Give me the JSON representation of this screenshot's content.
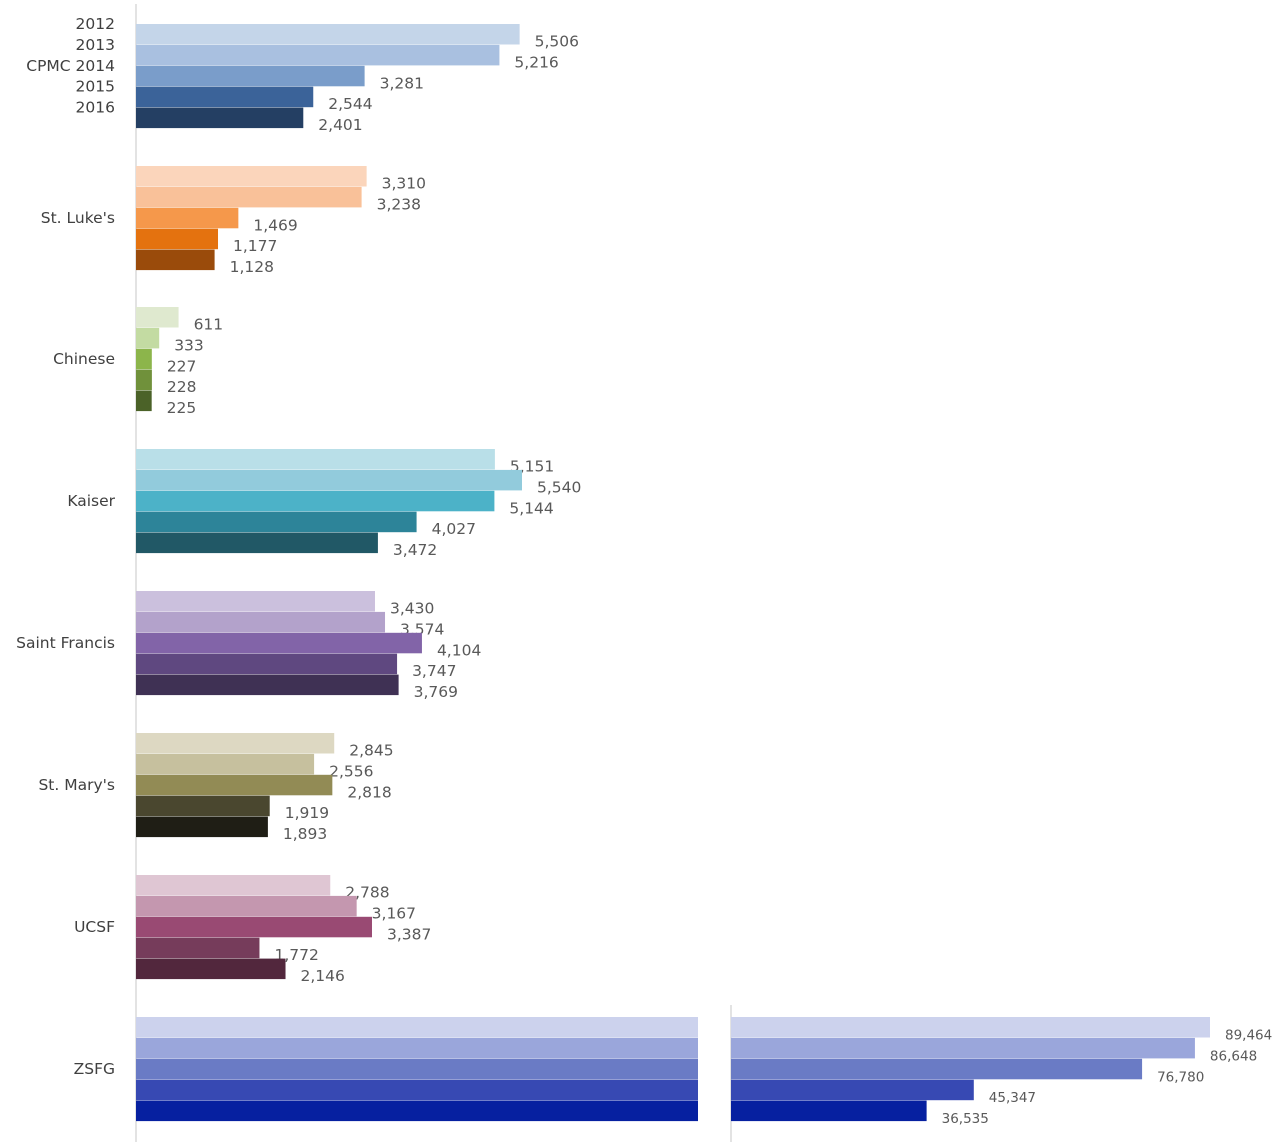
{
  "chart_data": {
    "type": "bar",
    "orientation": "horizontal",
    "series_names": [
      "2012",
      "2013",
      "CPMC 2014",
      "2015",
      "2016"
    ],
    "groups": [
      {
        "name": "",
        "values": [
          5506,
          5216,
          3281,
          2544,
          2401
        ],
        "labels": [
          "5,506",
          "5,216",
          "3,281",
          "2,544",
          "2,401"
        ],
        "colors": [
          "#c4d5e9",
          "#a9c0e0",
          "#7a9dca",
          "#3b6399",
          "#243f63"
        ]
      },
      {
        "name": "St. Luke's",
        "values": [
          3310,
          3238,
          1469,
          1177,
          1128
        ],
        "labels": [
          "3,310",
          "3,238",
          "1,469",
          "1,177",
          "1,128"
        ],
        "colors": [
          "#fbd5bb",
          "#f9c199",
          "#f5984b",
          "#e4720f",
          "#9a4b0b"
        ]
      },
      {
        "name": "Chinese",
        "values": [
          611,
          333,
          227,
          228,
          225
        ],
        "labels": [
          "611",
          "333",
          "227",
          "228",
          "225"
        ],
        "colors": [
          "#dfe9cf",
          "#c3dba2",
          "#8cb54b",
          "#70913b",
          "#4b6228"
        ]
      },
      {
        "name": "Kaiser",
        "values": [
          5151,
          5540,
          5144,
          4027,
          3472
        ],
        "labels": [
          "5,151",
          "5,540",
          "5,144",
          "4,027",
          "3,472"
        ],
        "colors": [
          "#b9dfe8",
          "#92cbdc",
          "#4cb2c8",
          "#2d8499",
          "#215866"
        ]
      },
      {
        "name": "Saint Francis",
        "values": [
          3430,
          3574,
          4104,
          3747,
          3769
        ],
        "labels": [
          "3,430",
          "3,574",
          "4,104",
          "3,747",
          "3,769"
        ],
        "colors": [
          "#cbc0dd",
          "#b3a2cb",
          "#8264a8",
          "#5f4880",
          "#3f3154"
        ]
      },
      {
        "name": "St. Mary's",
        "values": [
          2845,
          2556,
          2818,
          1919,
          1893
        ],
        "labels": [
          "2,845",
          "2,556",
          "2,818",
          "1,919",
          "1,893"
        ],
        "colors": [
          "#ddd8c2",
          "#c6c09e",
          "#928b55",
          "#4a472f",
          "#1f1e15"
        ]
      },
      {
        "name": "UCSF",
        "values": [
          2788,
          3167,
          3387,
          1772,
          2146
        ],
        "labels": [
          "2,788",
          "3,167",
          "3,387",
          "1,772",
          "2,146"
        ],
        "colors": [
          "#dfc6d3",
          "#c497af",
          "#994a73",
          "#763c5b",
          "#52273d"
        ]
      },
      {
        "name": "ZSFG",
        "values": [
          89464,
          86648,
          76780,
          45347,
          36535
        ],
        "labels": [
          "89,464",
          "86,648",
          "76,780",
          "45,347",
          "36,535"
        ],
        "colors": [
          "#ccd2ed",
          "#9aa6db",
          "#6a7bc5",
          "#3749b3",
          "#0620a0"
        ]
      }
    ]
  }
}
